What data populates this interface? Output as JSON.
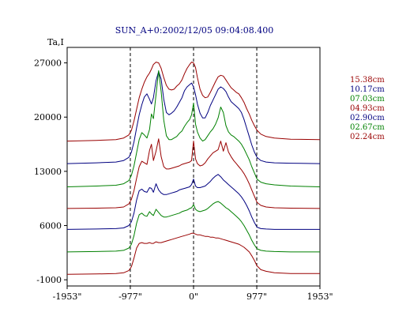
{
  "chart_data": {
    "type": "line",
    "title": "SUN_A+0:2002/12/05 09:04:08.400",
    "ylabel": "Ta,I",
    "xlabel": "",
    "x_ticks": [
      "-1953\"",
      "-977\"",
      "0\"",
      "977\"",
      "1953\""
    ],
    "x_tick_values": [
      -1953,
      -977,
      0,
      977,
      1953
    ],
    "y_ticks": [
      "27000",
      "20000",
      "13000",
      "6000",
      "-1000"
    ],
    "y_tick_values": [
      27000,
      20000,
      13000,
      6000,
      -1000
    ],
    "xlim": [
      -1953,
      1953
    ],
    "ylim": [
      -1800,
      29000
    ],
    "vlines": [
      -977,
      0,
      977
    ],
    "legend_placement": "right",
    "series": [
      {
        "name": "15.38cm",
        "color": "#990000",
        "x": [
          -1953,
          -1500,
          -1200,
          -1080,
          -1000,
          -960,
          -920,
          -880,
          -840,
          -800,
          -760,
          -720,
          -680,
          -650,
          -620,
          -580,
          -540,
          -500,
          -460,
          -420,
          -380,
          -340,
          -300,
          -260,
          -220,
          -180,
          -140,
          -100,
          -60,
          -30,
          0,
          30,
          60,
          100,
          140,
          180,
          220,
          260,
          300,
          340,
          380,
          420,
          460,
          500,
          540,
          580,
          620,
          660,
          700,
          740,
          780,
          820,
          860,
          900,
          940,
          980,
          1040,
          1120,
          1250,
          1500,
          1953
        ],
        "y": [
          16900,
          17000,
          17100,
          17300,
          17700,
          18300,
          19500,
          21000,
          22500,
          23600,
          24500,
          25200,
          25700,
          26200,
          26800,
          27100,
          27000,
          26300,
          25100,
          24100,
          23600,
          23500,
          23600,
          24000,
          24300,
          24800,
          25600,
          26300,
          26800,
          27100,
          27000,
          26400,
          25100,
          23600,
          22800,
          22500,
          22600,
          23200,
          23900,
          24600,
          25200,
          25400,
          25300,
          24800,
          24300,
          23800,
          23500,
          23200,
          23000,
          22500,
          21900,
          21100,
          20400,
          19600,
          18900,
          18300,
          17800,
          17500,
          17300,
          17150,
          17100
        ]
      },
      {
        "name": "10.17cm",
        "color": "#000080",
        "x": [
          -1953,
          -1500,
          -1200,
          -1080,
          -1000,
          -960,
          -920,
          -880,
          -840,
          -800,
          -760,
          -720,
          -680,
          -650,
          -620,
          -580,
          -540,
          -500,
          -460,
          -420,
          -380,
          -340,
          -300,
          -260,
          -220,
          -180,
          -140,
          -100,
          -60,
          -30,
          0,
          30,
          60,
          100,
          140,
          180,
          220,
          260,
          300,
          340,
          380,
          420,
          460,
          500,
          540,
          580,
          620,
          660,
          700,
          740,
          780,
          820,
          860,
          900,
          940,
          980,
          1040,
          1120,
          1250,
          1500,
          1953
        ],
        "y": [
          14000,
          14100,
          14200,
          14400,
          14800,
          15500,
          16800,
          18600,
          20300,
          21600,
          22600,
          23000,
          22300,
          21700,
          22500,
          24700,
          25900,
          24900,
          22300,
          20600,
          20300,
          20500,
          20800,
          21300,
          21900,
          22500,
          23400,
          23900,
          24200,
          24400,
          23900,
          22900,
          21700,
          20500,
          19900,
          19900,
          20600,
          21500,
          22200,
          22900,
          23600,
          23900,
          23700,
          23300,
          22600,
          22000,
          21700,
          21400,
          21100,
          20600,
          19700,
          18600,
          17500,
          16400,
          15500,
          14800,
          14400,
          14200,
          14100,
          14050,
          14000
        ]
      },
      {
        "name": "07.03cm",
        "color": "#008000",
        "x": [
          -1953,
          -1500,
          -1200,
          -1080,
          -1000,
          -960,
          -920,
          -880,
          -840,
          -800,
          -760,
          -720,
          -680,
          -650,
          -620,
          -580,
          -540,
          -500,
          -460,
          -420,
          -380,
          -340,
          -300,
          -260,
          -220,
          -180,
          -140,
          -100,
          -60,
          -30,
          0,
          30,
          60,
          100,
          140,
          180,
          220,
          260,
          300,
          340,
          380,
          420,
          460,
          500,
          540,
          580,
          620,
          660,
          700,
          740,
          780,
          820,
          860,
          900,
          940,
          980,
          1040,
          1120,
          1250,
          1500,
          1953
        ],
        "y": [
          11000,
          11100,
          11200,
          11400,
          11800,
          12500,
          13700,
          15400,
          17100,
          18000,
          17700,
          17300,
          18400,
          20400,
          19800,
          22900,
          26000,
          23300,
          19600,
          17600,
          17100,
          17100,
          17300,
          17500,
          17900,
          18200,
          18800,
          19300,
          19700,
          20300,
          21800,
          19100,
          18100,
          17300,
          16900,
          17100,
          17600,
          18100,
          18500,
          19100,
          19900,
          21300,
          20600,
          18900,
          18100,
          17700,
          17500,
          17200,
          16900,
          16500,
          15900,
          15200,
          14500,
          13600,
          12800,
          12000,
          11600,
          11400,
          11250,
          11100,
          11000
        ]
      },
      {
        "name": "04.93cm",
        "color": "#990000",
        "x": [
          -1953,
          -1500,
          -1200,
          -1080,
          -1000,
          -960,
          -920,
          -880,
          -840,
          -800,
          -760,
          -720,
          -680,
          -650,
          -620,
          -580,
          -540,
          -500,
          -460,
          -420,
          -380,
          -340,
          -300,
          -260,
          -220,
          -180,
          -140,
          -100,
          -60,
          -30,
          0,
          30,
          60,
          100,
          140,
          180,
          220,
          260,
          300,
          340,
          380,
          420,
          460,
          500,
          540,
          580,
          620,
          660,
          700,
          740,
          780,
          820,
          860,
          900,
          940,
          980,
          1040,
          1120,
          1250,
          1500,
          1953
        ],
        "y": [
          8200,
          8250,
          8300,
          8400,
          8800,
          9400,
          10500,
          12100,
          13600,
          14300,
          14100,
          13900,
          15700,
          16500,
          14400,
          15600,
          17200,
          14900,
          13600,
          13300,
          13300,
          13400,
          13500,
          13600,
          13700,
          13900,
          14000,
          14100,
          14200,
          14400,
          16900,
          14600,
          14000,
          13700,
          13800,
          14100,
          14600,
          15000,
          15400,
          15600,
          15800,
          16900,
          15600,
          16700,
          15500,
          14900,
          14400,
          14000,
          13600,
          13200,
          12700,
          12100,
          11400,
          10600,
          9800,
          9000,
          8600,
          8400,
          8300,
          8250,
          8200
        ]
      },
      {
        "name": "02.90cm",
        "color": "#000080",
        "x": [
          -1953,
          -1500,
          -1200,
          -1080,
          -1000,
          -960,
          -920,
          -880,
          -840,
          -800,
          -760,
          -720,
          -680,
          -650,
          -620,
          -580,
          -540,
          -500,
          -460,
          -420,
          -380,
          -340,
          -300,
          -260,
          -220,
          -180,
          -140,
          -100,
          -60,
          -30,
          0,
          30,
          60,
          100,
          140,
          180,
          220,
          260,
          300,
          340,
          380,
          420,
          460,
          500,
          540,
          580,
          620,
          660,
          700,
          740,
          780,
          820,
          860,
          900,
          940,
          980,
          1040,
          1120,
          1250,
          1500,
          1953
        ],
        "y": [
          5500,
          5550,
          5600,
          5700,
          6000,
          6500,
          7600,
          9300,
          10500,
          10700,
          10400,
          10300,
          10900,
          10800,
          10300,
          11400,
          10600,
          10200,
          10000,
          10000,
          10100,
          10200,
          10300,
          10400,
          10600,
          10700,
          10800,
          10900,
          11000,
          11300,
          12000,
          11100,
          10900,
          10900,
          11000,
          11100,
          11400,
          11700,
          12100,
          12400,
          12600,
          12300,
          11900,
          11600,
          11300,
          11000,
          10700,
          10400,
          10100,
          9700,
          9200,
          8600,
          7900,
          7100,
          6400,
          5800,
          5600,
          5550,
          5500,
          5500,
          5500
        ]
      },
      {
        "name": "02.67cm",
        "color": "#008000",
        "x": [
          -1953,
          -1500,
          -1200,
          -1080,
          -1000,
          -960,
          -920,
          -880,
          -840,
          -800,
          -760,
          -720,
          -680,
          -650,
          -620,
          -580,
          -540,
          -500,
          -460,
          -420,
          -380,
          -340,
          -300,
          -260,
          -220,
          -180,
          -140,
          -100,
          -60,
          -30,
          0,
          30,
          60,
          100,
          140,
          180,
          220,
          260,
          300,
          340,
          380,
          420,
          460,
          500,
          540,
          580,
          620,
          660,
          700,
          740,
          780,
          820,
          860,
          900,
          940,
          980,
          1040,
          1120,
          1250,
          1500,
          1953
        ],
        "y": [
          2600,
          2650,
          2700,
          2800,
          3100,
          3600,
          4700,
          6300,
          7400,
          7600,
          7300,
          7200,
          7800,
          7500,
          7300,
          8100,
          7700,
          7300,
          7100,
          7100,
          7200,
          7300,
          7400,
          7500,
          7600,
          7800,
          7900,
          8000,
          8200,
          8300,
          8700,
          8100,
          7900,
          7800,
          7900,
          8000,
          8200,
          8500,
          8800,
          9000,
          9100,
          8900,
          8600,
          8300,
          8100,
          7800,
          7500,
          7200,
          6900,
          6500,
          6000,
          5400,
          4800,
          4100,
          3500,
          3000,
          2800,
          2700,
          2650,
          2600,
          2600
        ]
      },
      {
        "name": "02.24cm",
        "color": "#990000",
        "x": [
          -1953,
          -1500,
          -1200,
          -1080,
          -1000,
          -960,
          -920,
          -880,
          -840,
          -800,
          -760,
          -720,
          -680,
          -650,
          -620,
          -580,
          -540,
          -500,
          -460,
          -420,
          -380,
          -340,
          -300,
          -260,
          -220,
          -180,
          -140,
          -100,
          -60,
          -30,
          0,
          30,
          60,
          100,
          140,
          180,
          220,
          260,
          300,
          340,
          380,
          420,
          460,
          500,
          540,
          580,
          620,
          660,
          700,
          740,
          780,
          820,
          860,
          900,
          940,
          980,
          1040,
          1120,
          1250,
          1500,
          1953
        ],
        "y": [
          -300,
          -250,
          -200,
          -100,
          200,
          700,
          1800,
          3100,
          3700,
          3800,
          3700,
          3700,
          3800,
          3700,
          3700,
          3900,
          3800,
          3800,
          3900,
          4000,
          4100,
          4200,
          4300,
          4400,
          4500,
          4600,
          4700,
          4800,
          4900,
          5000,
          5000,
          4900,
          4800,
          4800,
          4700,
          4600,
          4600,
          4500,
          4500,
          4400,
          4400,
          4300,
          4200,
          4100,
          4000,
          3900,
          3800,
          3700,
          3600,
          3400,
          3200,
          2900,
          2600,
          2100,
          1500,
          800,
          300,
          100,
          -100,
          -200,
          -200
        ]
      }
    ]
  }
}
